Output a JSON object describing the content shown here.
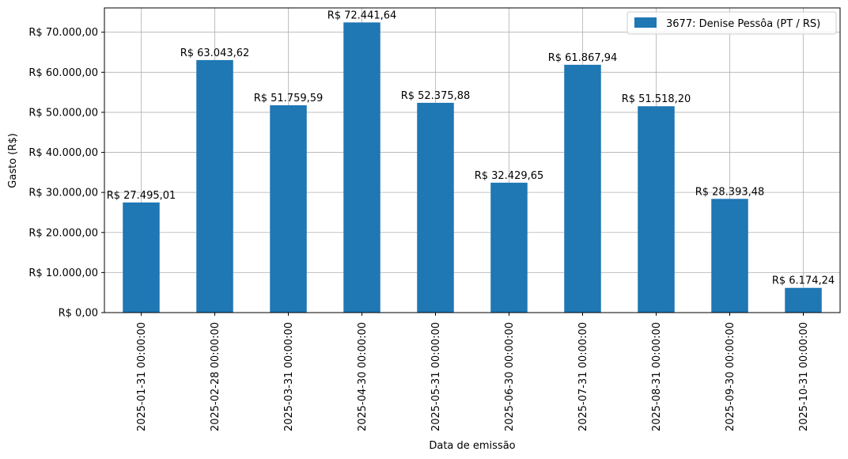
{
  "chart_data": {
    "type": "bar",
    "categories": [
      "2025-01-31 00:00:00",
      "2025-02-28 00:00:00",
      "2025-03-31 00:00:00",
      "2025-04-30 00:00:00",
      "2025-05-31 00:00:00",
      "2025-06-30 00:00:00",
      "2025-07-31 00:00:00",
      "2025-08-31 00:00:00",
      "2025-09-30 00:00:00",
      "2025-10-31 00:00:00"
    ],
    "series": [
      {
        "name": "3677: Denise Pessôa (PT / RS)",
        "color": "#1f77b4",
        "values": [
          27495.01,
          63043.62,
          51759.59,
          72441.64,
          52375.88,
          32429.65,
          61867.94,
          51518.2,
          28393.48,
          6174.24
        ],
        "value_labels": [
          "R$ 27.495,01",
          "R$ 63.043,62",
          "R$ 51.759,59",
          "R$ 72.441,64",
          "R$ 52.375,88",
          "R$ 32.429,65",
          "R$ 61.867,94",
          "R$ 51.518,20",
          "R$ 28.393,48",
          "R$ 6.174,24"
        ]
      }
    ],
    "title": "",
    "xlabel": "Data de emissão",
    "ylabel": "Gasto (R$)",
    "ylim": [
      0,
      76066
    ],
    "yticks": [
      0,
      10000,
      20000,
      30000,
      40000,
      50000,
      60000,
      70000
    ],
    "ytick_labels": [
      "R$ 0,00",
      "R$ 10.000,00",
      "R$ 20.000,00",
      "R$ 30.000,00",
      "R$ 40.000,00",
      "R$ 50.000,00",
      "R$ 60.000,00",
      "R$ 70.000,00"
    ],
    "grid": true,
    "legend_position": "top-right"
  }
}
